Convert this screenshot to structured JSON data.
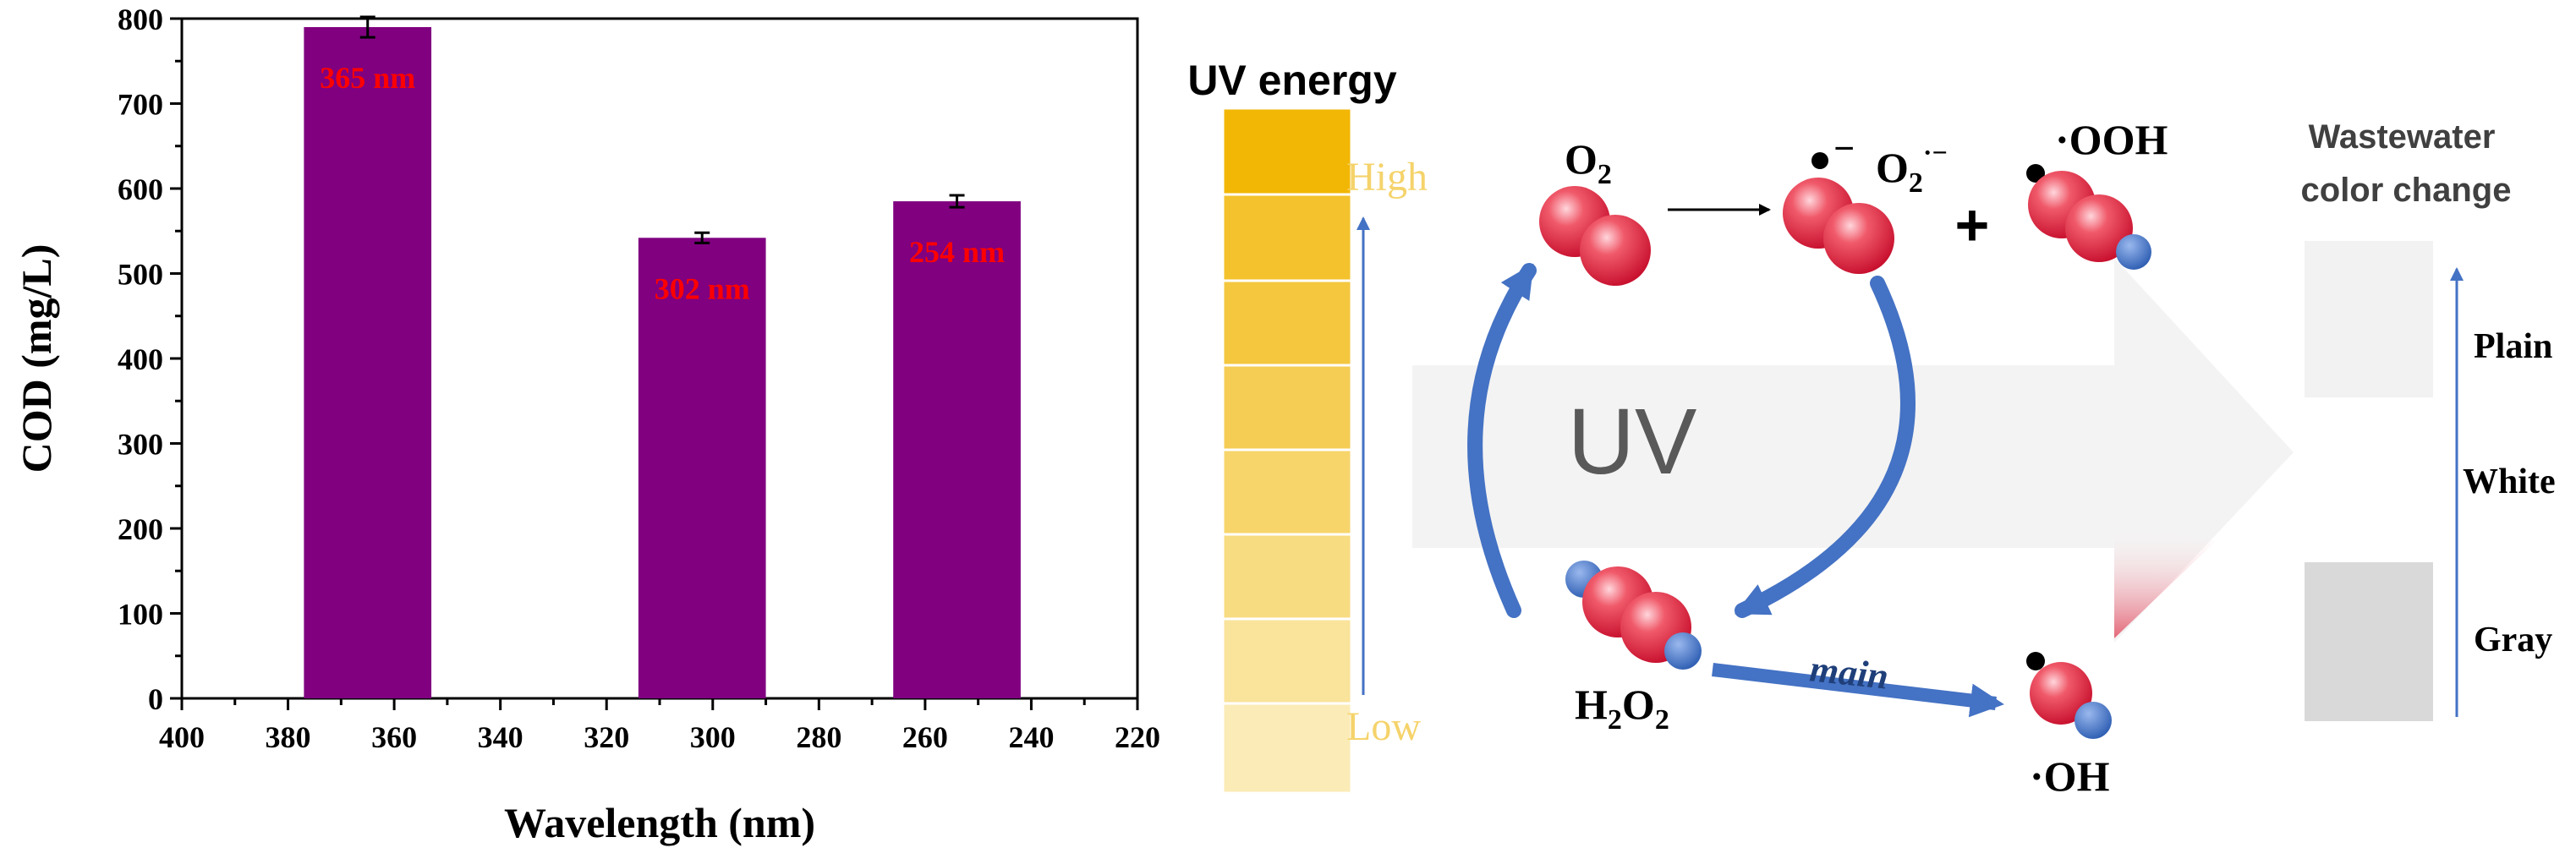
{
  "chart_data": {
    "type": "bar",
    "xlabel": "Wavelength (nm)",
    "ylabel": "COD (mg/L)",
    "xlim": [
      400,
      220
    ],
    "ylim": [
      0,
      800
    ],
    "xticks": [
      400,
      380,
      360,
      340,
      320,
      300,
      280,
      260,
      240,
      220
    ],
    "yticks": [
      0,
      100,
      200,
      300,
      400,
      500,
      600,
      700,
      800
    ],
    "x": [
      365,
      302,
      254
    ],
    "values": [
      790,
      542,
      585
    ],
    "errors": [
      12,
      6,
      7
    ],
    "data_labels": [
      "365 nm",
      "302 nm",
      "254 nm"
    ],
    "bar_width_nm": 24,
    "bar_color": "#800080",
    "label_color": "#ff0000",
    "grid": false
  },
  "diagram": {
    "energy_title": "UV energy",
    "energy_high": "High",
    "energy_low": "Low",
    "uv_text": "UV",
    "o2_label": "O",
    "o2_sub": "2",
    "superoxide_label": "O",
    "superoxide_sub": "2",
    "superoxide_sup": "·−",
    "radical_charge": "−",
    "plus": "+",
    "hydroperoxyl_label": "·OOH",
    "h2o2_h": "H",
    "h2o2_sub1": "2",
    "h2o2_o": "O",
    "h2o2_sub2": "2",
    "main_label": "main",
    "hydroxyl_label": "·OH",
    "color_title_line1": "Wastewater",
    "color_title_line2": "color change",
    "color_plain": "Plain",
    "color_white": "White",
    "color_gray": "Gray",
    "colors": {
      "oxygen": "#e2404f",
      "hydrogen": "#4472c4",
      "arrow": "#4472c4",
      "energy_top": "#f2b705",
      "gray_box": "#d9d9d9",
      "plain_box": "#f2f2f2"
    }
  }
}
